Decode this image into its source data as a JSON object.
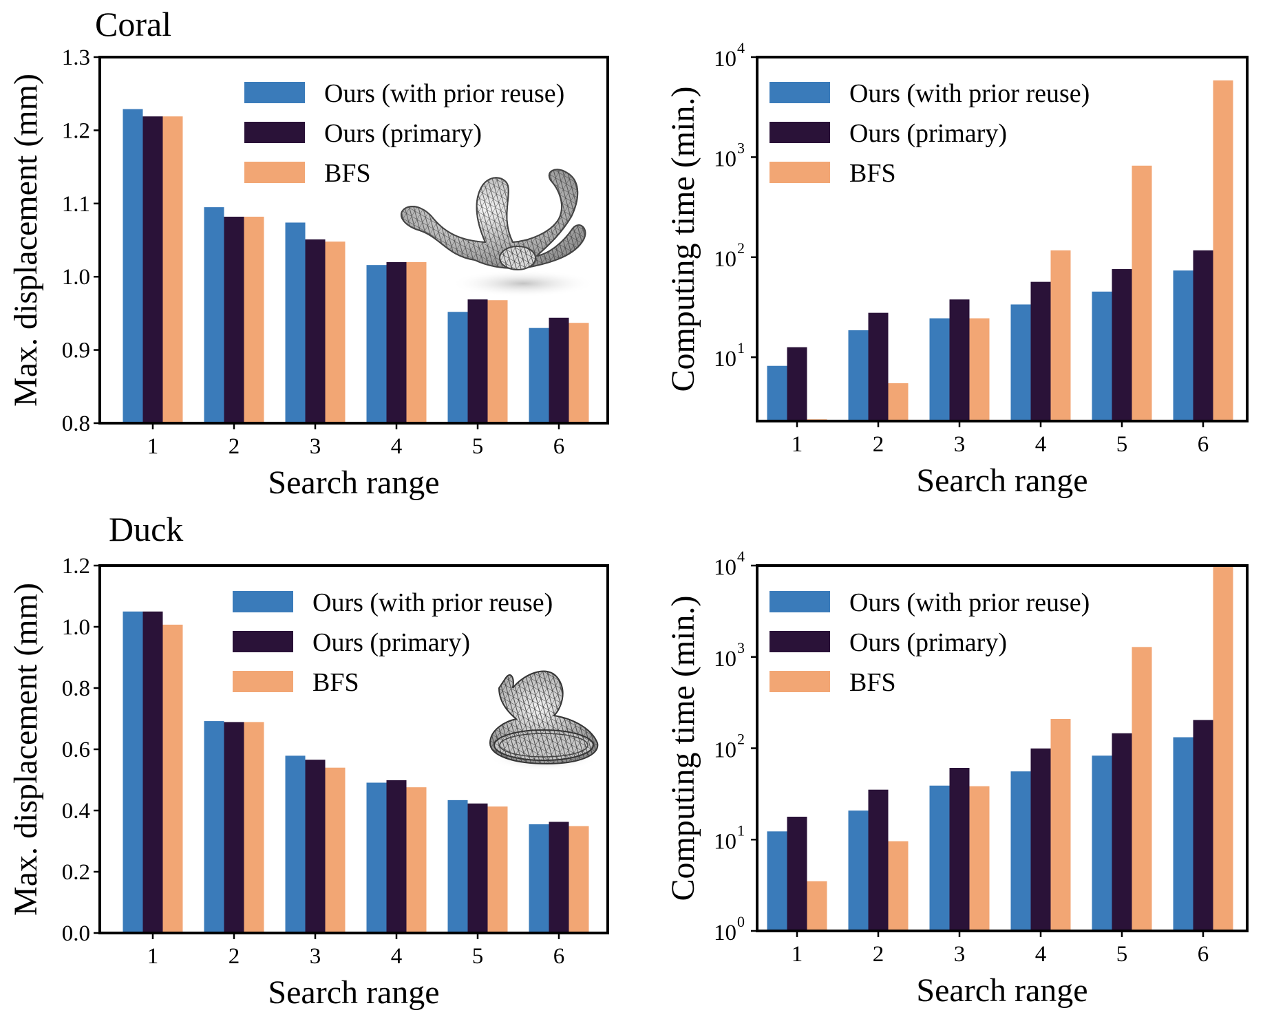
{
  "colors": {
    "ours_reuse": "#3a7bba",
    "ours_primary": "#2a1238",
    "bfs": "#f2a674"
  },
  "panel_titles": [
    "Coral",
    "Duck"
  ],
  "icons": [
    "coral-mesh-icon",
    "duck-mesh-icon"
  ],
  "chart_data": [
    {
      "type": "bar",
      "title": "Coral",
      "xlabel": "Search range",
      "ylabel": "Max. displacement (mm)",
      "yscale": "linear",
      "ylim": [
        0.8,
        1.3
      ],
      "yticks": [
        0.8,
        0.9,
        1.0,
        1.1,
        1.2,
        1.3
      ],
      "ytick_labels": [
        "0.8",
        "0.9",
        "1.0",
        "1.1",
        "1.2",
        "1.3"
      ],
      "categories": [
        "1",
        "2",
        "3",
        "4",
        "5",
        "6"
      ],
      "legend_position": "top-right",
      "series": [
        {
          "name": "Ours (with prior reuse)",
          "values": [
            1.229,
            1.095,
            1.074,
            1.016,
            0.952,
            0.93
          ]
        },
        {
          "name": "Ours (primary)",
          "values": [
            1.219,
            1.082,
            1.051,
            1.02,
            0.969,
            0.944
          ]
        },
        {
          "name": "BFS",
          "values": [
            1.219,
            1.082,
            1.048,
            1.02,
            0.968,
            0.937
          ]
        }
      ]
    },
    {
      "type": "bar",
      "title": "",
      "xlabel": "Search range",
      "ylabel": "Computing time (min.)",
      "yscale": "log",
      "ylim": [
        2.3,
        10000
      ],
      "yticks": [
        10,
        100,
        1000,
        10000
      ],
      "ytick_labels": [
        {
          "base": "10",
          "exp": "1"
        },
        {
          "base": "10",
          "exp": "2"
        },
        {
          "base": "10",
          "exp": "3"
        },
        {
          "base": "10",
          "exp": "4"
        }
      ],
      "categories": [
        "1",
        "2",
        "3",
        "4",
        "5",
        "6"
      ],
      "legend_position": "top-left",
      "series": [
        {
          "name": "Ours (with prior reuse)",
          "values": [
            8.2,
            18.6,
            24.5,
            33.7,
            45.3,
            73.6
          ]
        },
        {
          "name": "Ours (primary)",
          "values": [
            12.6,
            27.8,
            37.8,
            56.7,
            76.1,
            117
          ]
        },
        {
          "name": "BFS",
          "values": [
            2.4,
            5.5,
            24.5,
            117,
            822,
            5856
          ]
        }
      ]
    },
    {
      "type": "bar",
      "title": "Duck",
      "xlabel": "Search range",
      "ylabel": "Max. displacement (mm)",
      "yscale": "linear",
      "ylim": [
        0.0,
        1.2
      ],
      "yticks": [
        0.0,
        0.2,
        0.4,
        0.6,
        0.8,
        1.0,
        1.2
      ],
      "ytick_labels": [
        "0.0",
        "0.2",
        "0.4",
        "0.6",
        "0.8",
        "1.0",
        "1.2"
      ],
      "categories": [
        "1",
        "2",
        "3",
        "4",
        "5",
        "6"
      ],
      "legend_position": "top-right",
      "series": [
        {
          "name": "Ours (with prior reuse)",
          "values": [
            1.05,
            0.692,
            0.579,
            0.491,
            0.434,
            0.355
          ]
        },
        {
          "name": "Ours (primary)",
          "values": [
            1.05,
            0.689,
            0.566,
            0.499,
            0.423,
            0.363
          ]
        },
        {
          "name": "BFS",
          "values": [
            1.007,
            0.689,
            0.54,
            0.476,
            0.413,
            0.349
          ]
        }
      ]
    },
    {
      "type": "bar",
      "title": "",
      "xlabel": "Search range",
      "ylabel": "Computing time (min.)",
      "yscale": "log",
      "ylim": [
        1,
        10000
      ],
      "yticks": [
        1,
        10,
        100,
        1000,
        10000
      ],
      "ytick_labels": [
        {
          "base": "10",
          "exp": "0"
        },
        {
          "base": "10",
          "exp": "1"
        },
        {
          "base": "10",
          "exp": "2"
        },
        {
          "base": "10",
          "exp": "3"
        },
        {
          "base": "10",
          "exp": "4"
        }
      ],
      "categories": [
        "1",
        "2",
        "3",
        "4",
        "5",
        "6"
      ],
      "legend_position": "top-left",
      "series": [
        {
          "name": "Ours (with prior reuse)",
          "values": [
            12.3,
            20.8,
            39.0,
            55.8,
            83.0,
            132
          ]
        },
        {
          "name": "Ours (primary)",
          "values": [
            17.8,
            35.2,
            61.0,
            99.5,
            146,
            204
          ]
        },
        {
          "name": "BFS",
          "values": [
            3.5,
            9.6,
            38.4,
            209,
            1284,
            10000
          ]
        }
      ]
    }
  ]
}
